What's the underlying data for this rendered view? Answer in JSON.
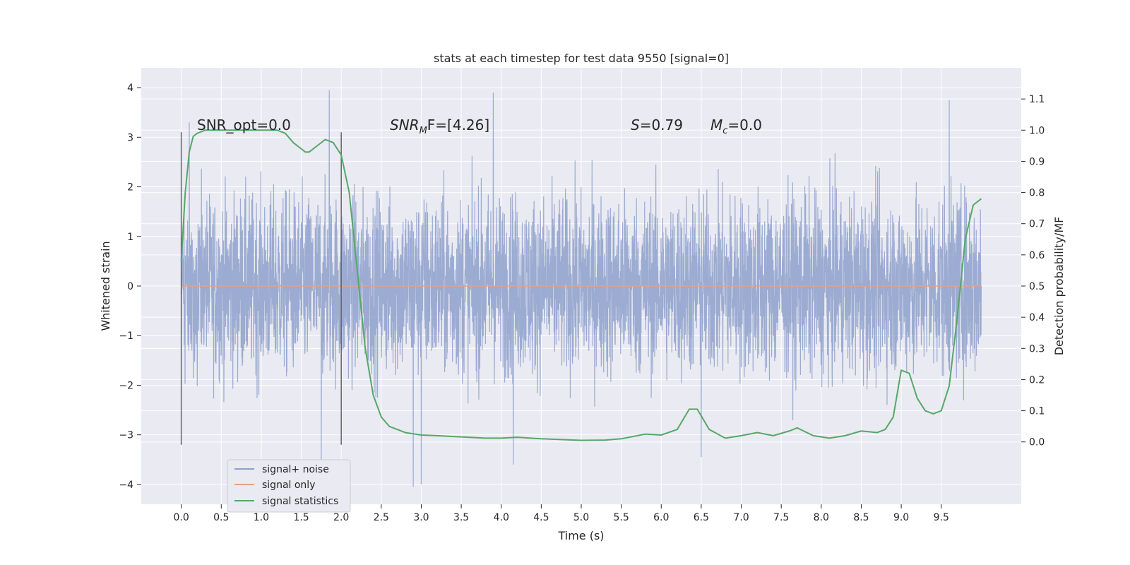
{
  "chart_data": {
    "type": "line",
    "title": "stats at each timestep for test data 9550 [signal=0]",
    "xlabel": "Time (s)",
    "ylabel_left": "Whitened strain",
    "ylabel_right": "Detection probability/MF",
    "xlim": [
      -0.5,
      10.5
    ],
    "ylim_left": [
      -4.4,
      4.4
    ],
    "ylim_right": [
      -0.2,
      1.2
    ],
    "xticks": [
      "0.0",
      "0.5",
      "1.0",
      "1.5",
      "2.0",
      "2.5",
      "3.0",
      "3.5",
      "4.0",
      "4.5",
      "5.0",
      "5.5",
      "6.0",
      "6.5",
      "7.0",
      "7.5",
      "8.0",
      "8.5",
      "9.0",
      "9.5"
    ],
    "yticks_left": [
      "4",
      "3",
      "2",
      "1",
      "0",
      "−1",
      "−2",
      "−3",
      "−4"
    ],
    "yticks_right": [
      "1.1",
      "1.0",
      "0.9",
      "0.8",
      "0.7",
      "0.6",
      "0.5",
      "0.4",
      "0.3",
      "0.2",
      "0.1",
      "0.0"
    ],
    "annotations": {
      "snr_opt": "SNR_opt=0.0",
      "snr_mf_main": "SNR",
      "snr_mf_sub": "M",
      "snr_mf_rest": "F=[4.26]",
      "s_italic": "S",
      "s_value": "=0.79",
      "mc_main": "M",
      "mc_sub": "c",
      "mc_value": "=0.0"
    },
    "window_markers_x": [
      0.0,
      2.0
    ],
    "series": [
      {
        "name": "signal+ noise",
        "color": "#8da0cb",
        "x_range": [
          0.0,
          10.0
        ],
        "envelope_peaks": [
          {
            "x": 0.1,
            "y": 3.3
          },
          {
            "x": 1.85,
            "y": 3.95
          },
          {
            "x": 3.9,
            "y": 3.9
          },
          {
            "x": 9.6,
            "y": 3.75
          },
          {
            "x": 1.75,
            "y": -3.6
          },
          {
            "x": 2.9,
            "y": -4.05
          },
          {
            "x": 3.0,
            "y": -4.0
          },
          {
            "x": 4.15,
            "y": -3.6
          },
          {
            "x": 6.5,
            "y": -3.45
          }
        ]
      },
      {
        "name": "signal only",
        "color": "#e8a084",
        "x": [
          0.0,
          10.0
        ],
        "y": [
          0.0,
          0.0
        ]
      },
      {
        "name": "signal statistics",
        "color": "#55a868",
        "axis": "right",
        "x": [
          0.0,
          0.05,
          0.1,
          0.15,
          0.2,
          0.3,
          0.5,
          0.8,
          1.0,
          1.2,
          1.3,
          1.4,
          1.5,
          1.55,
          1.6,
          1.7,
          1.8,
          1.9,
          2.0,
          2.1,
          2.2,
          2.3,
          2.4,
          2.5,
          2.6,
          2.8,
          3.0,
          3.2,
          3.5,
          3.8,
          4.0,
          4.2,
          4.5,
          5.0,
          5.3,
          5.5,
          5.8,
          6.0,
          6.2,
          6.35,
          6.45,
          6.6,
          6.8,
          7.0,
          7.2,
          7.4,
          7.6,
          7.7,
          7.9,
          8.1,
          8.3,
          8.5,
          8.7,
          8.8,
          8.9,
          9.0,
          9.1,
          9.2,
          9.3,
          9.4,
          9.5,
          9.6,
          9.7,
          9.8,
          9.9,
          10.0
        ],
        "y": [
          0.58,
          0.8,
          0.93,
          0.98,
          0.99,
          1.0,
          1.0,
          1.0,
          1.0,
          1.0,
          0.99,
          0.96,
          0.94,
          0.93,
          0.93,
          0.95,
          0.97,
          0.96,
          0.92,
          0.8,
          0.55,
          0.3,
          0.15,
          0.08,
          0.05,
          0.03,
          0.022,
          0.02,
          0.016,
          0.012,
          0.012,
          0.015,
          0.01,
          0.005,
          0.006,
          0.01,
          0.025,
          0.022,
          0.04,
          0.105,
          0.105,
          0.04,
          0.012,
          0.02,
          0.03,
          0.02,
          0.035,
          0.045,
          0.02,
          0.012,
          0.02,
          0.035,
          0.03,
          0.04,
          0.08,
          0.23,
          0.22,
          0.14,
          0.1,
          0.09,
          0.1,
          0.18,
          0.4,
          0.65,
          0.76,
          0.78
        ]
      }
    ],
    "legend": {
      "position": "lower-left",
      "entries": [
        "signal+ noise",
        "signal only",
        "signal statistics"
      ]
    },
    "grid": true,
    "colors": {
      "plot_bg": "#eaeaf2",
      "grid": "#ffffff",
      "marker": "#666666"
    }
  }
}
